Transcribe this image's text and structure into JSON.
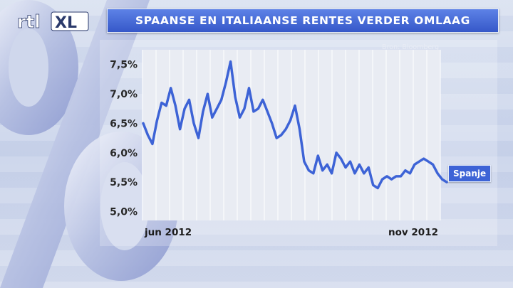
{
  "header": {
    "logo_text": "rtl XL",
    "title": "SPAANSE EN ITALIAANSE RENTES VERDER OMLAAG"
  },
  "source_note": "Bron: Bloomberg",
  "colors": {
    "title_bar": "#3658c9",
    "series_line": "#3d63d6",
    "plot_area": "#e9ecf3",
    "background": "#c9d3ea"
  },
  "chart_data": {
    "type": "line",
    "title": "SPAANSE EN ITALIAANSE RENTES VERDER OMLAAG",
    "xlabel": "",
    "ylabel": "",
    "x_tick_labels": [
      "jun 2012",
      "nov 2012"
    ],
    "y_tick_labels": [
      "7,5%",
      "7,0%",
      "6,5%",
      "6,0%",
      "5,5%",
      "5,0%"
    ],
    "y_ticks": [
      7.5,
      7.0,
      6.5,
      6.0,
      5.5,
      5.0
    ],
    "ylim": [
      4.85,
      7.75
    ],
    "grid": "vertical",
    "series": [
      {
        "name": "Spanje",
        "color": "#3d63d6",
        "values": [
          6.5,
          6.3,
          6.15,
          6.55,
          6.85,
          6.8,
          7.1,
          6.8,
          6.4,
          6.75,
          6.9,
          6.5,
          6.25,
          6.7,
          7.0,
          6.6,
          6.75,
          6.9,
          7.2,
          7.55,
          6.95,
          6.6,
          6.75,
          7.1,
          6.7,
          6.75,
          6.9,
          6.7,
          6.5,
          6.25,
          6.3,
          6.4,
          6.55,
          6.8,
          6.4,
          5.85,
          5.7,
          5.65,
          5.95,
          5.7,
          5.8,
          5.65,
          6.0,
          5.9,
          5.75,
          5.85,
          5.65,
          5.8,
          5.65,
          5.75,
          5.45,
          5.4,
          5.55,
          5.6,
          5.55,
          5.6,
          5.6,
          5.7,
          5.65,
          5.8,
          5.85,
          5.9,
          5.85,
          5.8,
          5.65,
          5.55,
          5.5
        ]
      }
    ]
  }
}
